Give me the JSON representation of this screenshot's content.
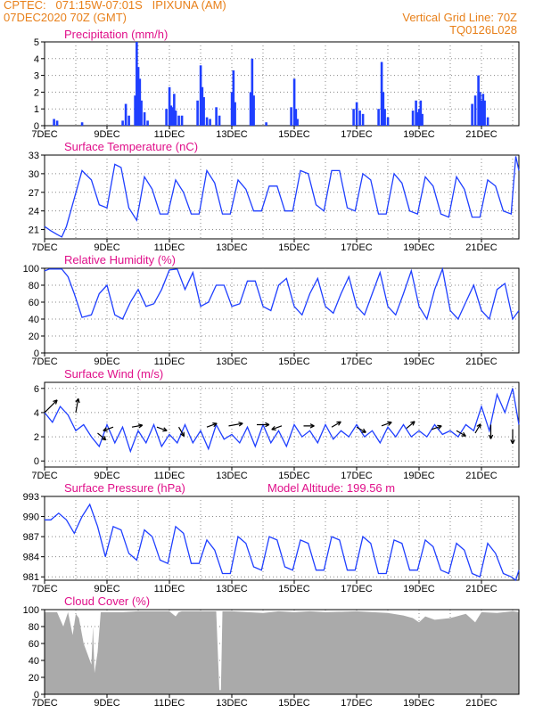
{
  "header": {
    "left_line1": "CPTEC:   071:15W-07:01S   IPIXUNA (AM)",
    "left_line2": "07DEC2020 70Z (GMT)",
    "right_line1": "Vertical Grid Line: 70Z",
    "right_line2": "TQ0126L028"
  },
  "colors": {
    "header": "#e8801a",
    "title": "#e0108a",
    "series": "#1f3fff",
    "cloud": "#aaaaaa",
    "grid": "#888888"
  },
  "chart_data": [
    {
      "id": "precip",
      "type": "bar",
      "title": "Precipitation  (mm/h)",
      "ylim": [
        0,
        5
      ],
      "yticks": [
        0,
        1,
        2,
        3,
        4,
        5
      ],
      "x_tick_labels": [
        "7DEC",
        "9DEC",
        "11DEC",
        "13DEC",
        "15DEC",
        "17DEC",
        "19DEC",
        "21DEC"
      ],
      "events": [
        [
          7.3,
          0.4
        ],
        [
          7.4,
          0.3
        ],
        [
          8.2,
          0.2
        ],
        [
          9.5,
          0.3
        ],
        [
          9.6,
          1.3
        ],
        [
          9.7,
          0.6
        ],
        [
          9.9,
          1.8
        ],
        [
          9.95,
          5.0
        ],
        [
          10.0,
          3.5
        ],
        [
          10.05,
          2.8
        ],
        [
          10.1,
          1.5
        ],
        [
          10.2,
          0.8
        ],
        [
          10.3,
          0.3
        ],
        [
          10.9,
          1.0
        ],
        [
          11.0,
          2.3
        ],
        [
          11.05,
          1.2
        ],
        [
          11.1,
          1.1
        ],
        [
          11.15,
          1.9
        ],
        [
          11.2,
          0.9
        ],
        [
          11.3,
          0.6
        ],
        [
          11.4,
          0.6
        ],
        [
          11.9,
          1.5
        ],
        [
          12.0,
          3.6
        ],
        [
          12.05,
          2.3
        ],
        [
          12.1,
          1.7
        ],
        [
          12.2,
          0.5
        ],
        [
          12.3,
          0.4
        ],
        [
          12.5,
          1.1
        ],
        [
          12.6,
          0.6
        ],
        [
          13.0,
          2.0
        ],
        [
          13.05,
          3.3
        ],
        [
          13.1,
          1.4
        ],
        [
          13.6,
          2.0
        ],
        [
          13.65,
          4.0
        ],
        [
          13.7,
          1.8
        ],
        [
          14.1,
          0.2
        ],
        [
          14.9,
          1.1
        ],
        [
          15.0,
          2.8
        ],
        [
          15.05,
          1.0
        ],
        [
          15.1,
          0.4
        ],
        [
          16.9,
          1.0
        ],
        [
          17.0,
          1.4
        ],
        [
          17.1,
          0.9
        ],
        [
          17.2,
          0.7
        ],
        [
          17.7,
          1.0
        ],
        [
          17.8,
          3.8
        ],
        [
          17.85,
          2.0
        ],
        [
          17.9,
          1.0
        ],
        [
          18.0,
          0.5
        ],
        [
          18.8,
          0.9
        ],
        [
          18.9,
          1.5
        ],
        [
          18.95,
          0.8
        ],
        [
          19.0,
          1.0
        ],
        [
          19.05,
          1.5
        ],
        [
          19.1,
          0.7
        ],
        [
          20.7,
          1.3
        ],
        [
          20.8,
          1.8
        ],
        [
          20.9,
          3.0
        ],
        [
          20.95,
          2.0
        ],
        [
          21.0,
          1.5
        ],
        [
          21.05,
          1.9
        ],
        [
          21.1,
          1.5
        ],
        [
          21.2,
          0.5
        ]
      ]
    },
    {
      "id": "temp",
      "type": "line",
      "title": "Surface Temperature  (nC)",
      "ylim": [
        19.5,
        33
      ],
      "yticks": [
        21,
        24,
        27,
        30,
        33
      ],
      "x_tick_labels": [
        "7DEC",
        "9DEC",
        "11DEC",
        "13DEC",
        "15DEC",
        "17DEC",
        "19DEC",
        "21DEC"
      ],
      "x": [
        7.0,
        7.2,
        7.4,
        7.55,
        7.7,
        7.95,
        8.2,
        8.5,
        8.75,
        9.0,
        9.25,
        9.45,
        9.7,
        9.95,
        10.2,
        10.45,
        10.7,
        10.95,
        11.2,
        11.45,
        11.7,
        11.95,
        12.2,
        12.45,
        12.7,
        12.95,
        13.2,
        13.45,
        13.7,
        13.95,
        14.2,
        14.45,
        14.7,
        14.95,
        15.2,
        15.45,
        15.7,
        15.95,
        16.2,
        16.45,
        16.7,
        16.95,
        17.2,
        17.45,
        17.7,
        17.95,
        18.2,
        18.45,
        18.7,
        18.95,
        19.2,
        19.45,
        19.7,
        19.95,
        20.2,
        20.45,
        20.7,
        20.95,
        21.2,
        21.45,
        21.7,
        21.95,
        22.1,
        22.2
      ],
      "y": [
        21.5,
        20.8,
        20.2,
        19.8,
        21.5,
        26.0,
        30.5,
        29.0,
        25.0,
        24.5,
        31.5,
        31.0,
        24.5,
        22.5,
        29.5,
        27.5,
        23.5,
        23.5,
        29.0,
        27.0,
        23.5,
        23.5,
        30.5,
        28.5,
        23.5,
        23.5,
        29.0,
        27.5,
        24.0,
        24.0,
        28.0,
        28.0,
        24.0,
        24.0,
        30.5,
        30.0,
        25.0,
        24.0,
        30.5,
        30.5,
        24.5,
        24.0,
        30.0,
        29.0,
        23.5,
        23.5,
        30.0,
        28.5,
        24.0,
        23.5,
        29.5,
        28.0,
        23.5,
        23.0,
        29.5,
        27.5,
        23.0,
        23.0,
        29.0,
        28.0,
        24.0,
        23.5,
        32.8,
        30.5
      ]
    },
    {
      "id": "rh",
      "type": "line",
      "title": "Relative Humidity  (%)",
      "ylim": [
        0,
        100
      ],
      "yticks": [
        0,
        20,
        40,
        60,
        80,
        100
      ],
      "x_tick_labels": [
        "7DEC",
        "9DEC",
        "11DEC",
        "13DEC",
        "15DEC",
        "17DEC",
        "19DEC",
        "21DEC"
      ],
      "x": [
        7.0,
        7.15,
        7.35,
        7.55,
        7.75,
        7.95,
        8.2,
        8.5,
        8.75,
        9.0,
        9.25,
        9.5,
        9.75,
        10.0,
        10.25,
        10.5,
        10.75,
        11.0,
        11.25,
        11.5,
        11.75,
        12.0,
        12.25,
        12.5,
        12.75,
        13.0,
        13.25,
        13.5,
        13.75,
        14.0,
        14.25,
        14.5,
        14.75,
        15.0,
        15.25,
        15.5,
        15.75,
        16.0,
        16.25,
        16.5,
        16.75,
        17.0,
        17.25,
        17.5,
        17.75,
        18.0,
        18.25,
        18.5,
        18.75,
        19.0,
        19.25,
        19.5,
        19.75,
        20.0,
        20.25,
        20.5,
        20.75,
        21.0,
        21.25,
        21.5,
        21.75,
        22.0,
        22.2
      ],
      "y": [
        97,
        99,
        99,
        99,
        90,
        70,
        42,
        45,
        70,
        80,
        45,
        40,
        60,
        75,
        55,
        58,
        75,
        98,
        99,
        75,
        95,
        55,
        60,
        80,
        80,
        55,
        58,
        85,
        85,
        55,
        50,
        80,
        88,
        55,
        45,
        70,
        88,
        55,
        47,
        70,
        90,
        55,
        45,
        70,
        95,
        55,
        45,
        70,
        97,
        55,
        40,
        75,
        99,
        50,
        40,
        60,
        80,
        50,
        40,
        75,
        82,
        40,
        50
      ]
    },
    {
      "id": "wind",
      "type": "line",
      "title": "Surface Wind  (m/s)",
      "ylim": [
        -0.5,
        6.5
      ],
      "yticks": [
        0,
        2,
        4,
        6
      ],
      "x_tick_labels": [
        "7DEC",
        "9DEC",
        "11DEC",
        "13DEC",
        "15DEC",
        "17DEC",
        "19DEC",
        "21DEC"
      ],
      "x": [
        7.0,
        7.25,
        7.5,
        7.75,
        8.0,
        8.25,
        8.5,
        8.75,
        9.0,
        9.25,
        9.5,
        9.75,
        10.0,
        10.25,
        10.5,
        10.75,
        11.0,
        11.25,
        11.5,
        11.75,
        12.0,
        12.25,
        12.5,
        12.75,
        13.0,
        13.25,
        13.5,
        13.75,
        14.0,
        14.25,
        14.5,
        14.75,
        15.0,
        15.25,
        15.5,
        15.75,
        16.0,
        16.25,
        16.5,
        16.75,
        17.0,
        17.25,
        17.5,
        17.75,
        18.0,
        18.25,
        18.5,
        18.75,
        19.0,
        19.25,
        19.5,
        19.75,
        20.0,
        20.25,
        20.5,
        20.75,
        21.0,
        21.25,
        21.5,
        21.75,
        22.0,
        22.2
      ],
      "y": [
        4.0,
        3.2,
        4.5,
        3.8,
        2.5,
        3.0,
        2.0,
        1.2,
        3.0,
        1.5,
        2.8,
        0.8,
        2.5,
        1.5,
        3.0,
        1.2,
        2.2,
        1.5,
        3.0,
        1.5,
        2.5,
        1.0,
        3.0,
        1.8,
        2.2,
        1.5,
        2.8,
        1.2,
        3.0,
        1.5,
        2.5,
        1.2,
        3.0,
        2.0,
        2.5,
        1.5,
        3.0,
        1.8,
        2.5,
        2.0,
        3.0,
        2.0,
        2.5,
        1.5,
        2.8,
        2.0,
        3.0,
        2.0,
        2.5,
        2.0,
        3.0,
        2.2,
        2.5,
        2.0,
        3.0,
        2.5,
        4.5,
        2.5,
        5.5,
        4.0,
        6.0,
        3.0
      ],
      "arrows": [
        [
          7.0,
          4.0,
          45,
          20
        ],
        [
          8.0,
          4.0,
          80,
          16
        ],
        [
          8.7,
          2.3,
          -40,
          12
        ],
        [
          9.2,
          2.8,
          200,
          12
        ],
        [
          9.8,
          2.8,
          10,
          12
        ],
        [
          10.6,
          2.8,
          -20,
          12
        ],
        [
          11.3,
          2.8,
          -60,
          12
        ],
        [
          12.2,
          2.8,
          20,
          12
        ],
        [
          12.9,
          2.9,
          10,
          16
        ],
        [
          13.8,
          3.0,
          0,
          14
        ],
        [
          14.6,
          2.9,
          200,
          12
        ],
        [
          15.3,
          2.9,
          0,
          12
        ],
        [
          16.2,
          2.8,
          30,
          12
        ],
        [
          17.0,
          2.8,
          -30,
          12
        ],
        [
          17.8,
          2.9,
          20,
          12
        ],
        [
          18.6,
          2.7,
          40,
          12
        ],
        [
          19.4,
          2.6,
          20,
          12
        ],
        [
          20.2,
          2.5,
          -30,
          12
        ],
        [
          20.8,
          2.3,
          60,
          12
        ],
        [
          21.3,
          3.0,
          270,
          16
        ],
        [
          22.0,
          2.6,
          270,
          16
        ]
      ]
    },
    {
      "id": "pres",
      "type": "line",
      "title": "Surface Pressure  (hPa)",
      "annotation": "Model Altitude: 199.56  m",
      "ylim": [
        980.5,
        993
      ],
      "yticks": [
        981,
        984,
        987,
        990,
        993
      ],
      "x_tick_labels": [
        "7DEC",
        "9DEC",
        "11DEC",
        "13DEC",
        "15DEC",
        "17DEC",
        "19DEC",
        "21DEC"
      ],
      "x": [
        7.0,
        7.2,
        7.45,
        7.7,
        7.95,
        8.2,
        8.45,
        8.7,
        8.95,
        9.2,
        9.45,
        9.7,
        9.95,
        10.2,
        10.45,
        10.7,
        10.95,
        11.2,
        11.45,
        11.7,
        11.95,
        12.2,
        12.45,
        12.7,
        12.95,
        13.2,
        13.45,
        13.7,
        13.95,
        14.2,
        14.45,
        14.7,
        14.95,
        15.2,
        15.45,
        15.7,
        15.95,
        16.2,
        16.45,
        16.7,
        16.95,
        17.2,
        17.45,
        17.7,
        17.95,
        18.2,
        18.45,
        18.7,
        18.95,
        19.2,
        19.45,
        19.7,
        19.95,
        20.2,
        20.45,
        20.7,
        20.95,
        21.2,
        21.45,
        21.7,
        21.95,
        22.1,
        22.2
      ],
      "y": [
        989.5,
        989.5,
        990.5,
        989.5,
        987.5,
        990.0,
        991.8,
        988.5,
        984.0,
        988.5,
        988.0,
        984.5,
        983.5,
        988.0,
        987.0,
        983.5,
        983.0,
        988.5,
        987.5,
        983.0,
        983.0,
        986.5,
        985.0,
        981.5,
        981.5,
        987.0,
        986.0,
        982.5,
        982.0,
        987.0,
        986.5,
        982.5,
        982.0,
        986.5,
        986.0,
        982.0,
        982.0,
        987.0,
        986.5,
        982.0,
        982.0,
        987.0,
        986.0,
        981.5,
        981.5,
        986.5,
        986.0,
        982.0,
        982.0,
        986.5,
        985.5,
        982.0,
        981.5,
        986.0,
        985.0,
        981.5,
        981.0,
        986.0,
        984.5,
        981.5,
        981.0,
        980.5,
        982.0
      ]
    },
    {
      "id": "cloud",
      "type": "area",
      "title": "Cloud Cover  (%)",
      "ylim": [
        0,
        100
      ],
      "yticks": [
        0,
        20,
        40,
        60,
        80,
        100
      ],
      "x_tick_labels": [
        "7DEC",
        "9DEC",
        "11DEC",
        "13DEC",
        "15DEC",
        "17DEC",
        "19DEC",
        "21DEC"
      ],
      "x": [
        7.0,
        7.4,
        7.6,
        7.75,
        7.9,
        8.0,
        8.1,
        8.25,
        8.5,
        8.55,
        8.6,
        8.7,
        8.8,
        9.0,
        9.5,
        10.0,
        11.0,
        11.2,
        11.3,
        11.4,
        12.0,
        12.5,
        12.6,
        12.65,
        12.7,
        13.0,
        14.0,
        14.5,
        15.0,
        15.5,
        16.0,
        17.0,
        18.0,
        18.5,
        18.8,
        19.0,
        19.2,
        19.5,
        20.0,
        20.5,
        20.8,
        21.0,
        21.5,
        22.0,
        22.2
      ],
      "y": [
        97,
        97,
        80,
        97,
        70,
        95,
        90,
        60,
        35,
        80,
        25,
        50,
        97,
        97,
        97,
        98,
        98,
        92,
        97,
        98,
        98,
        98,
        5,
        5,
        98,
        98,
        96,
        98,
        97,
        98,
        97,
        98,
        96,
        93,
        90,
        85,
        92,
        88,
        90,
        95,
        85,
        97,
        96,
        98,
        97
      ]
    }
  ]
}
